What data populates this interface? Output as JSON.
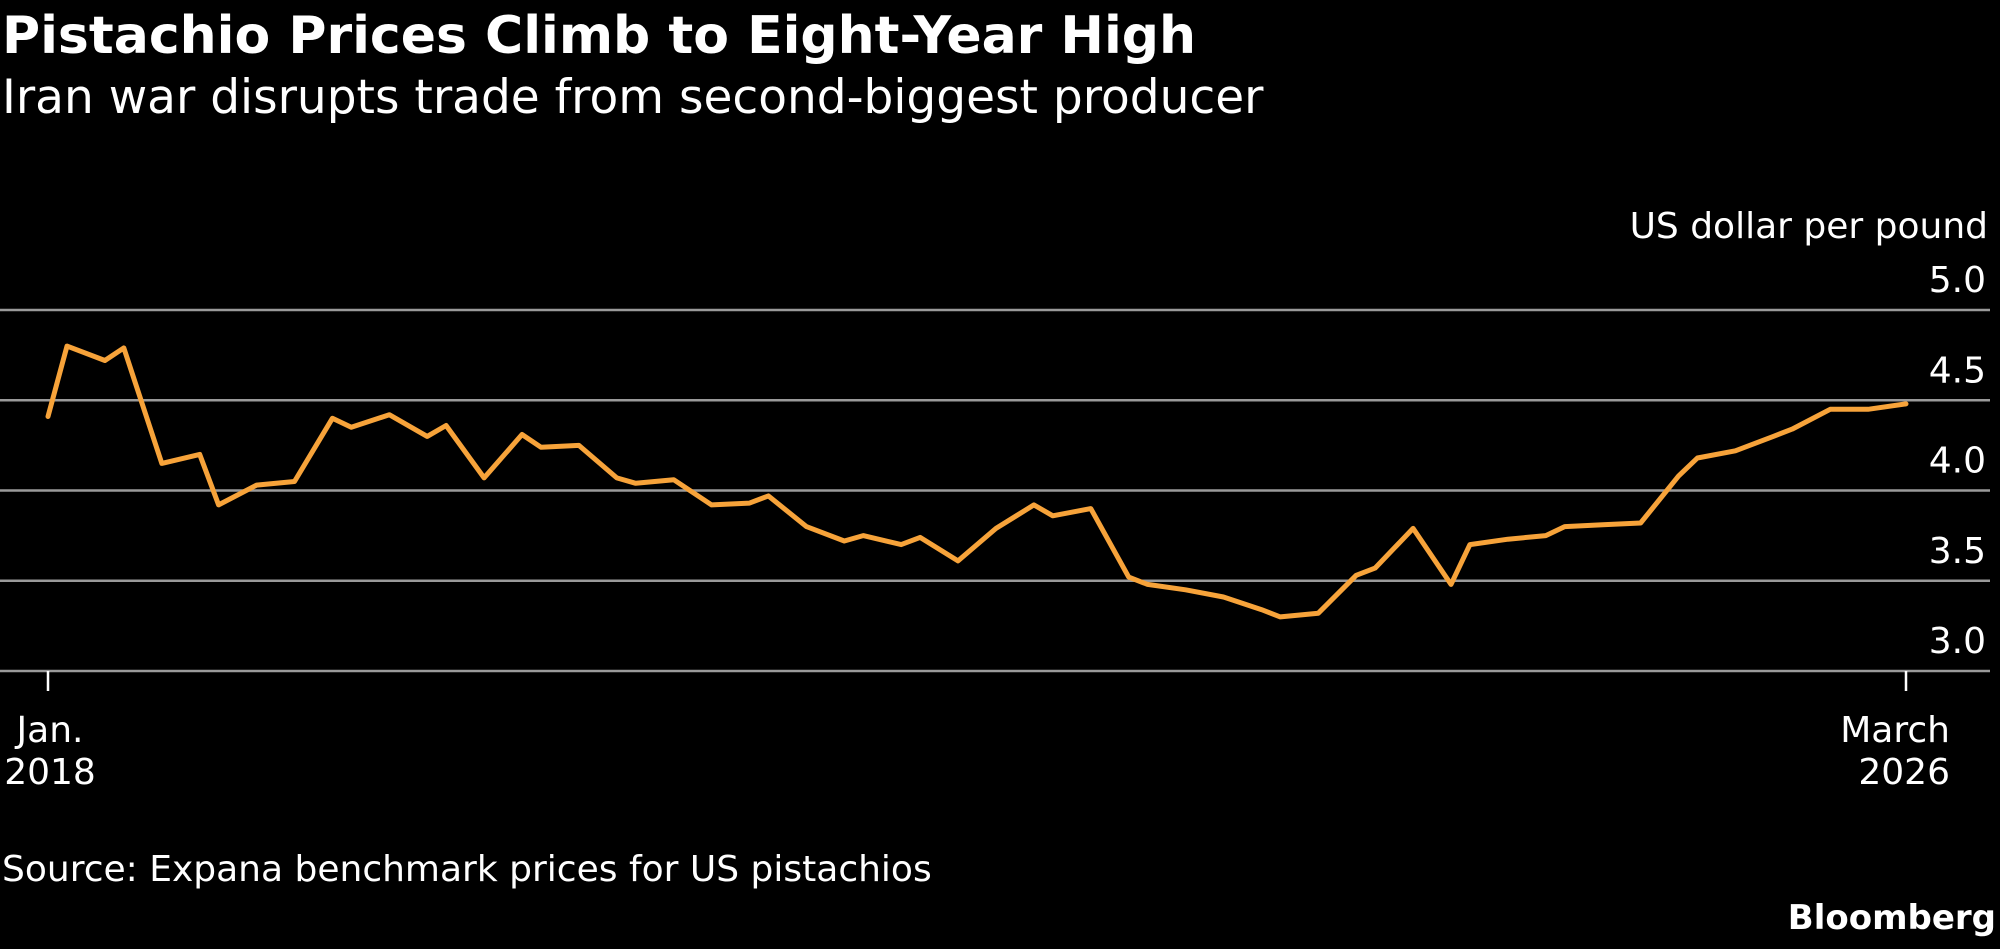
{
  "chart_data": {
    "type": "line",
    "title": "Pistachio Prices Climb to Eight-Year High",
    "subtitle": "Iran war disrupts trade from second-biggest producer",
    "unit_label": "US dollar per pound",
    "y_ticks": [
      "5.0",
      "4.5",
      "4.0",
      "3.5",
      "3.0"
    ],
    "ylim": [
      3.0,
      5.0
    ],
    "x_ticks": [
      {
        "line1": "Jan.",
        "line2": "2018",
        "date": "2018-01"
      },
      {
        "line1": "March",
        "line2": "2026",
        "date": "2026-03"
      }
    ],
    "x_range": [
      "2018-01",
      "2026-03"
    ],
    "grid": true,
    "series": [
      {
        "color": "#f7a33a",
        "x": [
          "2018-01",
          "2018-02",
          "2018-04",
          "2018-05",
          "2018-07",
          "2018-09",
          "2018-10",
          "2018-12",
          "2019-02",
          "2019-04",
          "2019-05",
          "2019-07",
          "2019-09",
          "2019-10",
          "2019-12",
          "2020-02",
          "2020-03",
          "2020-05",
          "2020-07",
          "2020-08",
          "2020-10",
          "2020-12",
          "2021-02",
          "2021-03",
          "2021-05",
          "2021-07",
          "2021-08",
          "2021-10",
          "2021-11",
          "2022-01",
          "2022-03",
          "2022-05",
          "2022-06",
          "2022-08",
          "2022-10",
          "2022-11",
          "2023-01",
          "2023-03",
          "2023-05",
          "2023-06",
          "2023-08",
          "2023-10",
          "2023-11",
          "2024-01",
          "2024-03",
          "2024-04",
          "2024-06",
          "2024-08",
          "2024-09",
          "2024-11",
          "2025-01",
          "2025-03",
          "2025-04",
          "2025-06",
          "2025-08",
          "2025-09",
          "2025-11",
          "2026-01",
          "2026-03"
        ],
        "y": [
          4.41,
          4.8,
          4.72,
          4.79,
          4.15,
          4.2,
          3.92,
          4.03,
          4.05,
          4.4,
          4.35,
          4.42,
          4.3,
          4.36,
          4.07,
          4.31,
          4.24,
          4.25,
          4.07,
          4.04,
          4.06,
          3.92,
          3.93,
          3.97,
          3.8,
          3.72,
          3.75,
          3.7,
          3.74,
          3.61,
          3.79,
          3.92,
          3.86,
          3.9,
          3.52,
          3.48,
          3.45,
          3.41,
          3.34,
          3.3,
          3.32,
          3.53,
          3.57,
          3.79,
          3.48,
          3.7,
          3.73,
          3.75,
          3.8,
          3.81,
          3.82,
          4.08,
          4.18,
          4.22,
          4.3,
          4.34,
          4.45,
          4.45,
          4.48
        ]
      }
    ]
  },
  "source": "Source: Expana benchmark prices for US pistachios",
  "brand": "Bloomberg"
}
